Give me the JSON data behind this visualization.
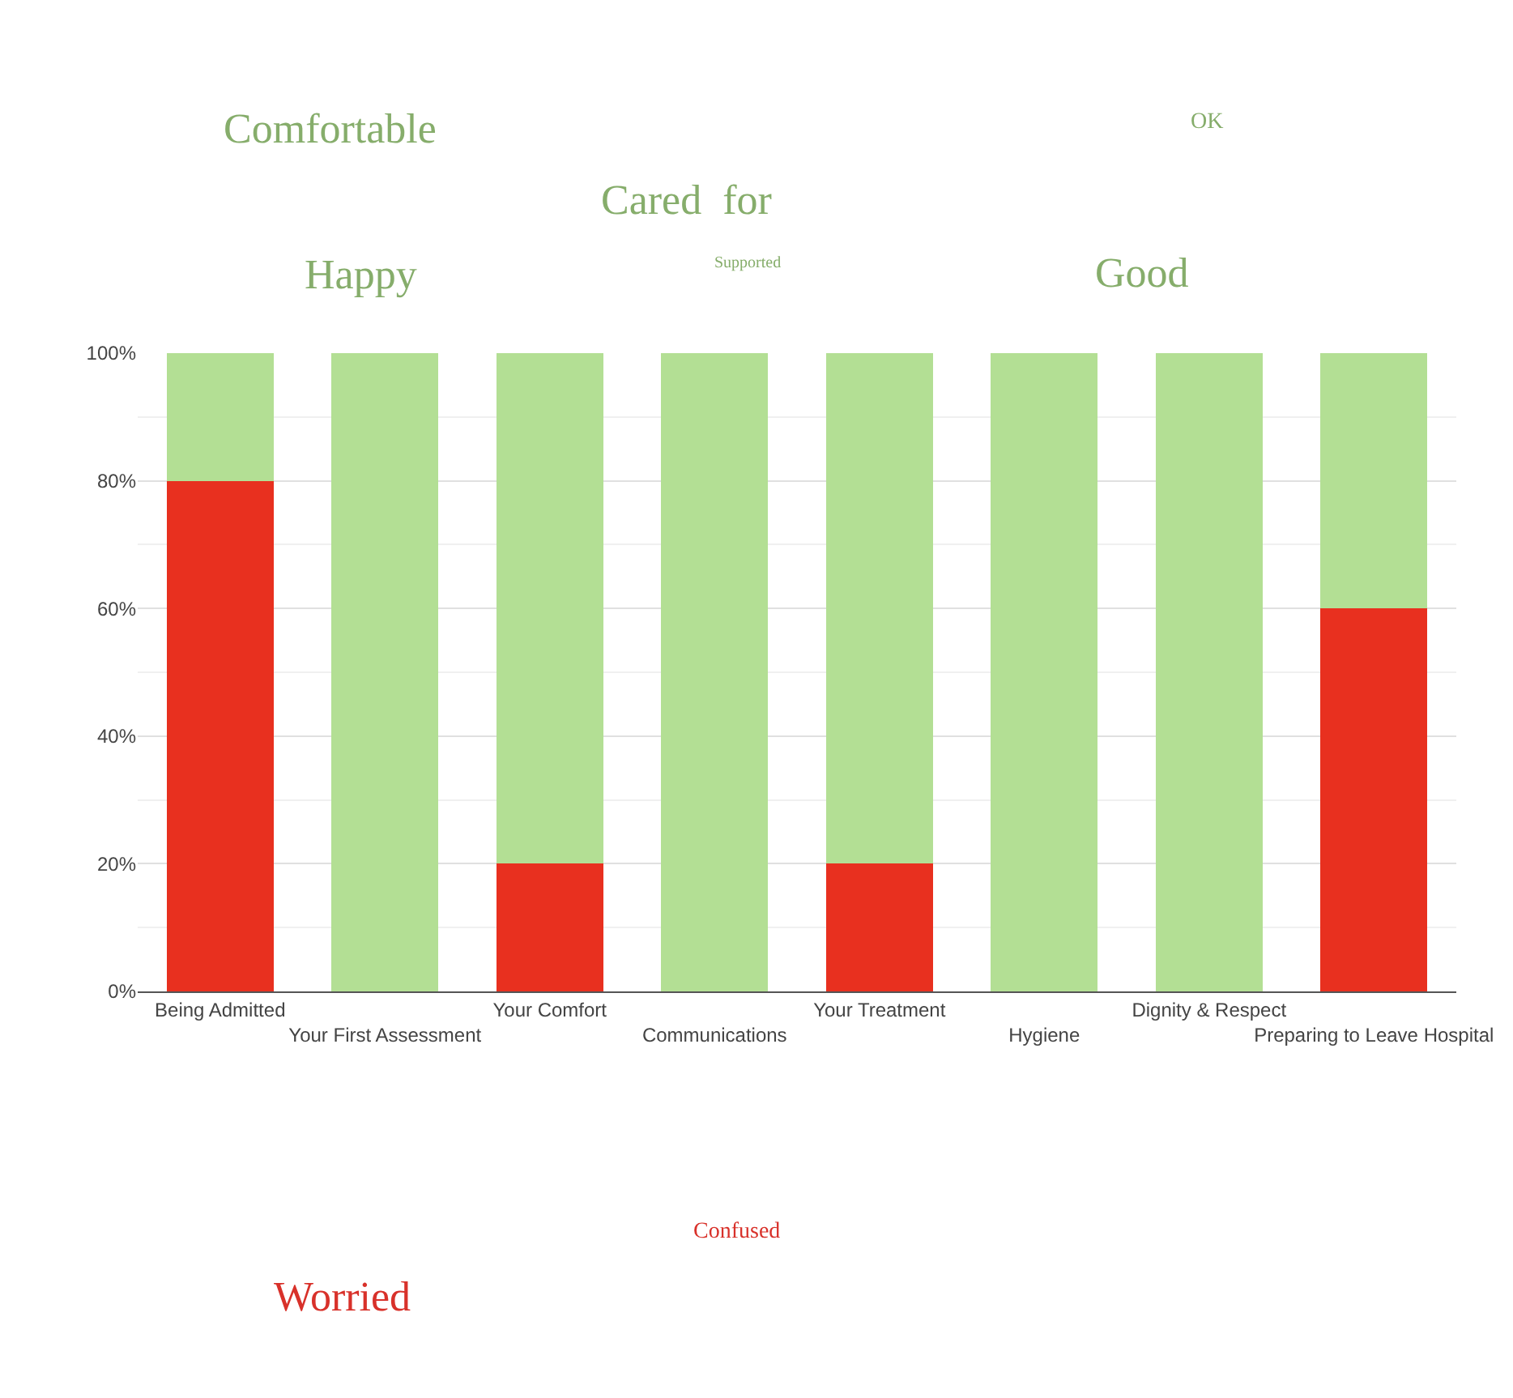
{
  "chart_data": {
    "type": "bar",
    "stacked": true,
    "categories": [
      "Being Admitted",
      "Your First Assessment",
      "Your Comfort",
      "Communications",
      "Your Treatment",
      "Hygiene",
      "Dignity & Respect",
      "Preparing to Leave Hospital"
    ],
    "series": [
      {
        "color": "#e8301f",
        "values": [
          80,
          0,
          20,
          0,
          20,
          0,
          0,
          60
        ]
      },
      {
        "color": "#b3df94",
        "values": [
          20,
          100,
          80,
          100,
          80,
          100,
          100,
          40
        ]
      }
    ],
    "ylim": [
      0,
      100
    ],
    "yticks": [
      {
        "value": 0,
        "label": "0%"
      },
      {
        "value": 20,
        "label": "20%"
      },
      {
        "value": 40,
        "label": "40%"
      },
      {
        "value": 60,
        "label": "60%"
      },
      {
        "value": 80,
        "label": "80%"
      },
      {
        "value": 100,
        "label": "100%"
      }
    ],
    "grid": "y",
    "annotations": [
      "Comfortable",
      "OK",
      "Cared  for",
      "Happy",
      "Supported",
      "Good",
      "Confused",
      "Worried"
    ]
  }
}
